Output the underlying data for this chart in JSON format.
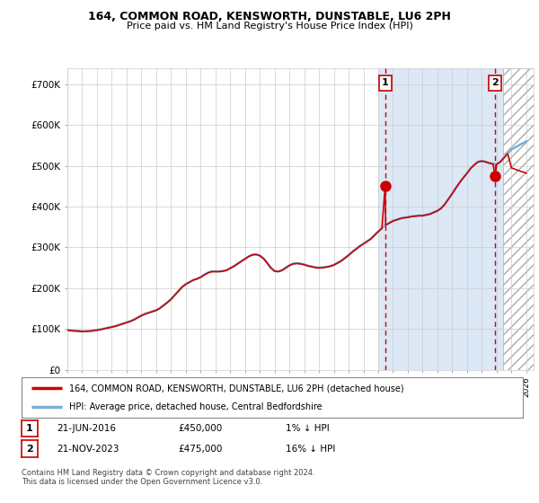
{
  "title": "164, COMMON ROAD, KENSWORTH, DUNSTABLE, LU6 2PH",
  "subtitle": "Price paid vs. HM Land Registry's House Price Index (HPI)",
  "ylabel_ticks": [
    "£0",
    "£100K",
    "£200K",
    "£300K",
    "£400K",
    "£500K",
    "£600K",
    "£700K"
  ],
  "ytick_values": [
    0,
    100000,
    200000,
    300000,
    400000,
    500000,
    600000,
    700000
  ],
  "ylim": [
    0,
    740000
  ],
  "xlim_start": 1995.0,
  "xlim_end": 2026.5,
  "background_color": "#ffffff",
  "plot_bg_color": "#ffffff",
  "plot_bg_blue_start": 2016.0,
  "plot_bg_blue_color": "#dce8f5",
  "grid_color": "#cccccc",
  "hpi_color": "#7bafd4",
  "price_color": "#cc0000",
  "marker_color": "#cc0000",
  "vline_color": "#cc0000",
  "hatch_start": 2024.42,
  "sale1_x": 2016.47,
  "sale1_y": 450000,
  "sale2_x": 2023.9,
  "sale2_y": 475000,
  "legend_label1": "164, COMMON ROAD, KENSWORTH, DUNSTABLE, LU6 2PH (detached house)",
  "legend_label2": "HPI: Average price, detached house, Central Bedfordshire",
  "table_row1": [
    "1",
    "21-JUN-2016",
    "£450,000",
    "1% ↓ HPI"
  ],
  "table_row2": [
    "2",
    "21-NOV-2023",
    "£475,000",
    "16% ↓ HPI"
  ],
  "footer": "Contains HM Land Registry data © Crown copyright and database right 2024.\nThis data is licensed under the Open Government Licence v3.0.",
  "hpi_data": [
    [
      1995.0,
      97000
    ],
    [
      1995.25,
      96000
    ],
    [
      1995.5,
      95500
    ],
    [
      1995.75,
      95000
    ],
    [
      1996.0,
      94000
    ],
    [
      1996.25,
      94500
    ],
    [
      1996.5,
      95000
    ],
    [
      1996.75,
      96000
    ],
    [
      1997.0,
      97500
    ],
    [
      1997.25,
      99000
    ],
    [
      1997.5,
      101000
    ],
    [
      1997.75,
      103000
    ],
    [
      1998.0,
      105000
    ],
    [
      1998.25,
      107000
    ],
    [
      1998.5,
      110000
    ],
    [
      1998.75,
      113000
    ],
    [
      1999.0,
      116000
    ],
    [
      1999.25,
      119000
    ],
    [
      1999.5,
      123000
    ],
    [
      1999.75,
      128000
    ],
    [
      2000.0,
      133000
    ],
    [
      2000.25,
      137000
    ],
    [
      2000.5,
      140000
    ],
    [
      2000.75,
      143000
    ],
    [
      2001.0,
      146000
    ],
    [
      2001.25,
      151000
    ],
    [
      2001.5,
      158000
    ],
    [
      2001.75,
      165000
    ],
    [
      2002.0,
      173000
    ],
    [
      2002.25,
      183000
    ],
    [
      2002.5,
      193000
    ],
    [
      2002.75,
      203000
    ],
    [
      2003.0,
      210000
    ],
    [
      2003.25,
      215000
    ],
    [
      2003.5,
      220000
    ],
    [
      2003.75,
      223000
    ],
    [
      2004.0,
      227000
    ],
    [
      2004.25,
      233000
    ],
    [
      2004.5,
      238000
    ],
    [
      2004.75,
      241000
    ],
    [
      2005.0,
      241000
    ],
    [
      2005.25,
      241000
    ],
    [
      2005.5,
      242000
    ],
    [
      2005.75,
      244000
    ],
    [
      2006.0,
      249000
    ],
    [
      2006.25,
      254000
    ],
    [
      2006.5,
      260000
    ],
    [
      2006.75,
      266000
    ],
    [
      2007.0,
      272000
    ],
    [
      2007.25,
      278000
    ],
    [
      2007.5,
      282000
    ],
    [
      2007.75,
      283000
    ],
    [
      2008.0,
      280000
    ],
    [
      2008.25,
      273000
    ],
    [
      2008.5,
      262000
    ],
    [
      2008.75,
      250000
    ],
    [
      2009.0,
      242000
    ],
    [
      2009.25,
      241000
    ],
    [
      2009.5,
      244000
    ],
    [
      2009.75,
      250000
    ],
    [
      2010.0,
      256000
    ],
    [
      2010.25,
      260000
    ],
    [
      2010.5,
      261000
    ],
    [
      2010.75,
      260000
    ],
    [
      2011.0,
      258000
    ],
    [
      2011.25,
      255000
    ],
    [
      2011.5,
      253000
    ],
    [
      2011.75,
      251000
    ],
    [
      2012.0,
      250000
    ],
    [
      2012.25,
      251000
    ],
    [
      2012.5,
      252000
    ],
    [
      2012.75,
      254000
    ],
    [
      2013.0,
      257000
    ],
    [
      2013.25,
      262000
    ],
    [
      2013.5,
      267000
    ],
    [
      2013.75,
      274000
    ],
    [
      2014.0,
      281000
    ],
    [
      2014.25,
      289000
    ],
    [
      2014.5,
      296000
    ],
    [
      2014.75,
      303000
    ],
    [
      2015.0,
      309000
    ],
    [
      2015.25,
      315000
    ],
    [
      2015.5,
      321000
    ],
    [
      2015.75,
      330000
    ],
    [
      2016.0,
      339000
    ],
    [
      2016.25,
      347000
    ],
    [
      2016.5,
      355000
    ],
    [
      2016.75,
      360000
    ],
    [
      2017.0,
      365000
    ],
    [
      2017.25,
      368000
    ],
    [
      2017.5,
      371000
    ],
    [
      2017.75,
      373000
    ],
    [
      2018.0,
      374000
    ],
    [
      2018.25,
      376000
    ],
    [
      2018.5,
      377000
    ],
    [
      2018.75,
      378000
    ],
    [
      2019.0,
      378000
    ],
    [
      2019.25,
      380000
    ],
    [
      2019.5,
      382000
    ],
    [
      2019.75,
      386000
    ],
    [
      2020.0,
      390000
    ],
    [
      2020.25,
      396000
    ],
    [
      2020.5,
      406000
    ],
    [
      2020.75,
      419000
    ],
    [
      2021.0,
      432000
    ],
    [
      2021.25,
      446000
    ],
    [
      2021.5,
      459000
    ],
    [
      2021.75,
      471000
    ],
    [
      2022.0,
      482000
    ],
    [
      2022.25,
      494000
    ],
    [
      2022.5,
      503000
    ],
    [
      2022.75,
      510000
    ],
    [
      2023.0,
      512000
    ],
    [
      2023.25,
      510000
    ],
    [
      2023.5,
      507000
    ],
    [
      2023.75,
      505000
    ],
    [
      2024.0,
      504000
    ],
    [
      2024.25,
      510000
    ],
    [
      2024.5,
      520000
    ],
    [
      2024.75,
      530000
    ],
    [
      2025.0,
      540000
    ],
    [
      2025.5,
      550000
    ],
    [
      2026.0,
      560000
    ]
  ],
  "price_data": [
    [
      1995.0,
      97000
    ],
    [
      1995.25,
      96000
    ],
    [
      1995.5,
      95000
    ],
    [
      1995.75,
      94500
    ],
    [
      1996.0,
      93500
    ],
    [
      1996.25,
      94000
    ],
    [
      1996.5,
      94500
    ],
    [
      1996.75,
      95500
    ],
    [
      1997.0,
      97000
    ],
    [
      1997.25,
      98500
    ],
    [
      1997.5,
      100500
    ],
    [
      1997.75,
      102500
    ],
    [
      1998.0,
      104500
    ],
    [
      1998.25,
      106500
    ],
    [
      1998.5,
      109500
    ],
    [
      1998.75,
      112500
    ],
    [
      1999.0,
      115500
    ],
    [
      1999.25,
      118500
    ],
    [
      1999.5,
      122500
    ],
    [
      1999.75,
      127500
    ],
    [
      2000.0,
      132500
    ],
    [
      2000.25,
      136500
    ],
    [
      2000.5,
      139500
    ],
    [
      2000.75,
      142500
    ],
    [
      2001.0,
      145500
    ],
    [
      2001.25,
      150500
    ],
    [
      2001.5,
      157500
    ],
    [
      2001.75,
      164500
    ],
    [
      2002.0,
      172500
    ],
    [
      2002.25,
      182500
    ],
    [
      2002.5,
      192500
    ],
    [
      2002.75,
      202500
    ],
    [
      2003.0,
      209500
    ],
    [
      2003.25,
      214500
    ],
    [
      2003.5,
      219500
    ],
    [
      2003.75,
      222500
    ],
    [
      2004.0,
      226500
    ],
    [
      2004.25,
      232500
    ],
    [
      2004.5,
      237500
    ],
    [
      2004.75,
      240500
    ],
    [
      2005.0,
      240500
    ],
    [
      2005.25,
      240500
    ],
    [
      2005.5,
      241500
    ],
    [
      2005.75,
      243500
    ],
    [
      2006.0,
      248500
    ],
    [
      2006.25,
      253500
    ],
    [
      2006.5,
      259500
    ],
    [
      2006.75,
      265500
    ],
    [
      2007.0,
      271500
    ],
    [
      2007.25,
      277500
    ],
    [
      2007.5,
      281500
    ],
    [
      2007.75,
      282500
    ],
    [
      2008.0,
      279500
    ],
    [
      2008.25,
      272500
    ],
    [
      2008.5,
      261500
    ],
    [
      2008.75,
      249500
    ],
    [
      2009.0,
      241500
    ],
    [
      2009.25,
      240500
    ],
    [
      2009.5,
      243500
    ],
    [
      2009.75,
      249500
    ],
    [
      2010.0,
      255500
    ],
    [
      2010.25,
      259500
    ],
    [
      2010.5,
      260500
    ],
    [
      2010.75,
      259500
    ],
    [
      2011.0,
      257500
    ],
    [
      2011.25,
      254500
    ],
    [
      2011.5,
      252500
    ],
    [
      2011.75,
      250500
    ],
    [
      2012.0,
      249500
    ],
    [
      2012.25,
      250500
    ],
    [
      2012.5,
      251500
    ],
    [
      2012.75,
      253500
    ],
    [
      2013.0,
      256500
    ],
    [
      2013.25,
      261500
    ],
    [
      2013.5,
      266500
    ],
    [
      2013.75,
      273500
    ],
    [
      2014.0,
      280500
    ],
    [
      2014.25,
      288500
    ],
    [
      2014.5,
      295500
    ],
    [
      2014.75,
      302500
    ],
    [
      2015.0,
      308500
    ],
    [
      2015.25,
      314500
    ],
    [
      2015.5,
      320500
    ],
    [
      2015.75,
      329500
    ],
    [
      2016.0,
      338500
    ],
    [
      2016.25,
      346500
    ],
    [
      2016.47,
      450000
    ],
    [
      2016.5,
      354500
    ],
    [
      2016.75,
      359500
    ],
    [
      2017.0,
      364500
    ],
    [
      2017.25,
      367500
    ],
    [
      2017.5,
      370500
    ],
    [
      2017.75,
      372500
    ],
    [
      2018.0,
      373500
    ],
    [
      2018.25,
      375500
    ],
    [
      2018.5,
      376500
    ],
    [
      2018.75,
      377500
    ],
    [
      2019.0,
      377500
    ],
    [
      2019.25,
      379500
    ],
    [
      2019.5,
      381500
    ],
    [
      2019.75,
      385500
    ],
    [
      2020.0,
      389500
    ],
    [
      2020.25,
      395500
    ],
    [
      2020.5,
      405500
    ],
    [
      2020.75,
      418500
    ],
    [
      2021.0,
      431500
    ],
    [
      2021.25,
      445500
    ],
    [
      2021.5,
      458500
    ],
    [
      2021.75,
      470500
    ],
    [
      2022.0,
      481500
    ],
    [
      2022.25,
      493500
    ],
    [
      2022.5,
      502500
    ],
    [
      2022.75,
      509500
    ],
    [
      2023.0,
      511500
    ],
    [
      2023.25,
      509500
    ],
    [
      2023.5,
      506500
    ],
    [
      2023.75,
      504500
    ],
    [
      2023.9,
      475000
    ],
    [
      2024.0,
      503500
    ],
    [
      2024.25,
      509500
    ],
    [
      2024.5,
      519500
    ],
    [
      2024.75,
      529500
    ],
    [
      2025.0,
      495000
    ],
    [
      2025.5,
      488000
    ],
    [
      2026.0,
      482000
    ]
  ]
}
